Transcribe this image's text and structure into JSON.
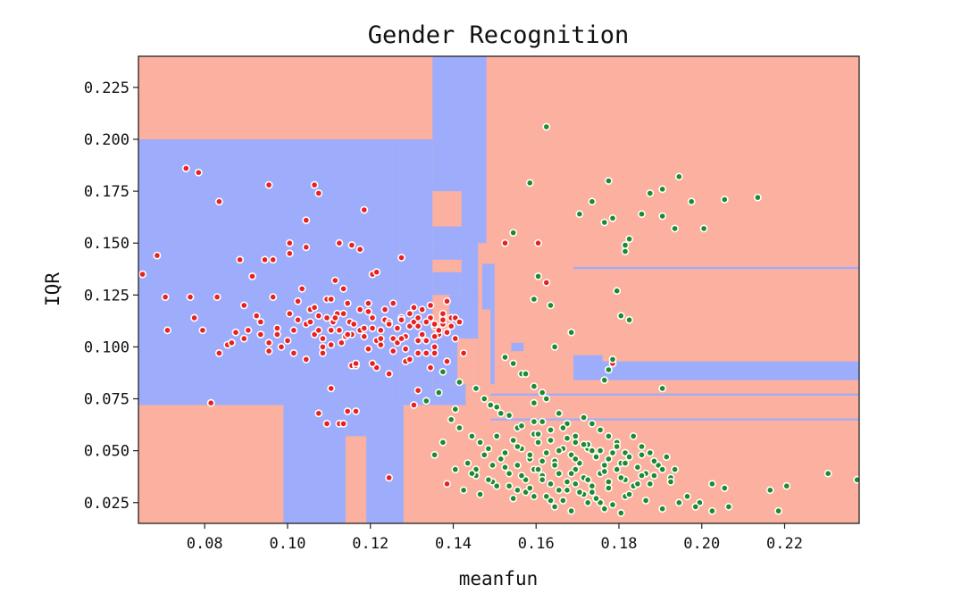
{
  "chart_data": {
    "type": "scatter",
    "title": "Gender Recognition",
    "xlabel": "meanfun",
    "ylabel": "IQR",
    "xlim": [
      0.064,
      0.238
    ],
    "ylim": [
      0.015,
      0.24
    ],
    "xticks": [
      0.08,
      0.1,
      0.12,
      0.14,
      0.16,
      0.18,
      0.2,
      0.22
    ],
    "xtick_labels": [
      "0.08",
      "0.10",
      "0.12",
      "0.14",
      "0.16",
      "0.18",
      "0.20",
      "0.22"
    ],
    "yticks": [
      0.025,
      0.05,
      0.075,
      0.1,
      0.125,
      0.15,
      0.175,
      0.2,
      0.225
    ],
    "ytick_labels": [
      "0.025",
      "0.050",
      "0.075",
      "0.100",
      "0.125",
      "0.150",
      "0.175",
      "0.200",
      "0.225"
    ],
    "grid": false,
    "colors": {
      "region_a": "#fbb0a0",
      "region_b": "#9eadfb",
      "class_red": "#e8211f",
      "class_green": "#1d8a2b",
      "marker_edge": "#ffffff"
    },
    "decision_regions": [
      {
        "class": "b",
        "x": [
          0.064,
          0.127
        ],
        "y": [
          0.072,
          0.2
        ]
      },
      {
        "class": "b",
        "x": [
          0.127,
          0.135
        ],
        "y": [
          0.072,
          0.2
        ]
      },
      {
        "class": "b",
        "x": [
          0.135,
          0.148
        ],
        "y": [
          0.15,
          0.24
        ]
      },
      {
        "class": "b",
        "x": [
          0.135,
          0.142
        ],
        "y": [
          0.125,
          0.15
        ]
      },
      {
        "class": "a",
        "x": [
          0.135,
          0.142
        ],
        "y": [
          0.158,
          0.175
        ]
      },
      {
        "class": "a",
        "x": [
          0.135,
          0.142
        ],
        "y": [
          0.136,
          0.142
        ]
      },
      {
        "class": "b",
        "x": [
          0.142,
          0.146
        ],
        "y": [
          0.12,
          0.152
        ]
      },
      {
        "class": "b",
        "x": [
          0.135,
          0.146
        ],
        "y": [
          0.082,
          0.125
        ]
      },
      {
        "class": "a",
        "x": [
          0.135,
          0.139
        ],
        "y": [
          0.107,
          0.125
        ]
      },
      {
        "class": "a",
        "x": [
          0.141,
          0.146
        ],
        "y": [
          0.082,
          0.104
        ]
      },
      {
        "class": "b",
        "x": [
          0.147,
          0.149
        ],
        "y": [
          0.118,
          0.14
        ]
      },
      {
        "class": "b",
        "x": [
          0.149,
          0.15
        ],
        "y": [
          0.082,
          0.14
        ]
      },
      {
        "class": "b",
        "x": [
          0.135,
          0.143
        ],
        "y": [
          0.072,
          0.082
        ]
      },
      {
        "class": "b",
        "x": [
          0.099,
          0.114
        ],
        "y": [
          0.015,
          0.072
        ]
      },
      {
        "class": "b",
        "x": [
          0.119,
          0.128
        ],
        "y": [
          0.015,
          0.072
        ]
      },
      {
        "class": "b",
        "x": [
          0.114,
          0.119
        ],
        "y": [
          0.057,
          0.072
        ]
      },
      {
        "class": "b",
        "x": [
          0.149,
          0.238
        ],
        "y": [
          0.0765,
          0.0775
        ]
      },
      {
        "class": "b",
        "x": [
          0.149,
          0.238
        ],
        "y": [
          0.0645,
          0.0655
        ]
      },
      {
        "class": "b",
        "x": [
          0.169,
          0.238
        ],
        "y": [
          0.084,
          0.093
        ]
      },
      {
        "class": "b",
        "x": [
          0.169,
          0.176
        ],
        "y": [
          0.09,
          0.096
        ]
      },
      {
        "class": "b",
        "x": [
          0.169,
          0.238
        ],
        "y": [
          0.1375,
          0.1385
        ]
      },
      {
        "class": "b",
        "x": [
          0.154,
          0.157
        ],
        "y": [
          0.098,
          0.102
        ]
      }
    ],
    "series": [
      {
        "class": "red",
        "x": [
          0.065,
          0.0685,
          0.0705,
          0.071,
          0.0755,
          0.0765,
          0.0775,
          0.0795,
          0.0815,
          0.083,
          0.0835,
          0.0855,
          0.0865,
          0.0875,
          0.0885,
          0.0895,
          0.0905,
          0.0915,
          0.0925,
          0.0935,
          0.0945,
          0.0955,
          0.0965,
          0.0975,
          0.0985,
          0.1,
          0.1015,
          0.1025,
          0.1035,
          0.1045,
          0.1055,
          0.1065,
          0.1075,
          0.1085,
          0.1095,
          0.111,
          0.112,
          0.113,
          0.114,
          0.115,
          0.116,
          0.1175,
          0.1185,
          0.1195,
          0.1205,
          0.1215,
          0.1225,
          0.1235,
          0.1245,
          0.1255,
          0.1265,
          0.1275,
          0.1285,
          0.1295,
          0.1305,
          0.1315,
          0.1325,
          0.1335,
          0.1345,
          0.1355,
          0.1365,
          0.1375,
          0.1385,
          0.0955,
          0.1065,
          0.1075,
          0.1045,
          0.0965,
          0.1185,
          0.0955,
          0.1005,
          0.1045,
          0.1005,
          0.1125,
          0.1155,
          0.1175,
          0.1205,
          0.1215,
          0.1275,
          0.0835,
          0.0895,
          0.1025,
          0.1105,
          0.1115,
          0.1135,
          0.0785,
          0.1145,
          0.1075,
          0.1095,
          0.1125,
          0.1135,
          0.1165,
          0.1255,
          0.1285,
          0.1315,
          0.1345,
          0.1045,
          0.1085,
          0.1155,
          0.1215,
          0.1245,
          0.1165,
          0.1105,
          0.1245,
          0.1305,
          0.1315,
          0.1385,
          0.1525,
          0.1605,
          0.1625,
          0.1785,
          0.0935,
          0.1005,
          0.1055,
          0.1145,
          0.1065,
          0.1085,
          0.1105,
          0.1195,
          0.1225,
          0.1265,
          0.1285,
          0.1335,
          0.1355,
          0.1385,
          0.1405,
          0.1425,
          0.1075,
          0.1115,
          0.1175,
          0.1235,
          0.1295,
          0.1325,
          0.1375,
          0.1395,
          0.1405,
          0.0975,
          0.1015,
          0.1125,
          0.1155,
          0.1225,
          0.1275,
          0.1315,
          0.1355,
          0.1195,
          0.1255,
          0.1305,
          0.1345,
          0.1385,
          0.1165,
          0.1205,
          0.1295,
          0.1355,
          0.1105,
          0.1145,
          0.1185,
          0.1245,
          0.1315,
          0.1365,
          0.1375,
          0.1395,
          0.1415,
          0.1095,
          0.1135,
          0.1205,
          0.1275,
          0.1335,
          0.1355,
          0.1375
        ],
        "y": [
          0.135,
          0.144,
          0.124,
          0.108,
          0.186,
          0.124,
          0.114,
          0.108,
          0.073,
          0.124,
          0.097,
          0.101,
          0.102,
          0.107,
          0.142,
          0.104,
          0.108,
          0.134,
          0.115,
          0.106,
          0.142,
          0.102,
          0.124,
          0.109,
          0.1,
          0.103,
          0.097,
          0.113,
          0.128,
          0.111,
          0.112,
          0.106,
          0.108,
          0.104,
          0.123,
          0.112,
          0.116,
          0.102,
          0.105,
          0.112,
          0.111,
          0.108,
          0.105,
          0.117,
          0.109,
          0.103,
          0.108,
          0.113,
          0.112,
          0.104,
          0.109,
          0.114,
          0.105,
          0.11,
          0.112,
          0.114,
          0.106,
          0.103,
          0.114,
          0.11,
          0.106,
          0.111,
          0.107,
          0.178,
          0.178,
          0.174,
          0.161,
          0.142,
          0.166,
          0.098,
          0.145,
          0.148,
          0.15,
          0.15,
          0.149,
          0.147,
          0.135,
          0.136,
          0.143,
          0.17,
          0.12,
          0.122,
          0.123,
          0.132,
          0.128,
          0.184,
          0.069,
          0.068,
          0.063,
          0.063,
          0.063,
          0.069,
          0.098,
          0.093,
          0.097,
          0.09,
          0.094,
          0.097,
          0.091,
          0.09,
          0.087,
          0.091,
          0.08,
          0.037,
          0.072,
          0.079,
          0.034,
          0.15,
          0.15,
          0.131,
          0.092,
          0.112,
          0.116,
          0.118,
          0.121,
          0.119,
          0.1,
          0.101,
          0.099,
          0.101,
          0.102,
          0.099,
          0.097,
          0.1,
          0.093,
          0.104,
          0.097,
          0.115,
          0.114,
          0.118,
          0.118,
          0.116,
          0.118,
          0.115,
          0.114,
          0.114,
          0.106,
          0.108,
          0.108,
          0.106,
          0.104,
          0.104,
          0.103,
          0.105,
          0.121,
          0.121,
          0.119,
          0.12,
          0.122,
          0.092,
          0.092,
          0.094,
          0.097,
          0.108,
          0.106,
          0.109,
          0.111,
          0.11,
          0.108,
          0.113,
          0.11,
          0.112,
          0.114,
          0.116,
          0.114,
          0.113,
          0.112,
          0.111,
          0.116
        ]
      },
      {
        "class": "green",
        "x": [
          0.149,
          0.1545,
          0.1585,
          0.1625,
          0.1645,
          0.1705,
          0.1735,
          0.1765,
          0.1775,
          0.1785,
          0.1815,
          0.1825,
          0.1855,
          0.1875,
          0.1905,
          0.1905,
          0.1935,
          0.1945,
          0.1975,
          0.2005,
          0.2055,
          0.2135,
          0.1795,
          0.1805,
          0.1825,
          0.1595,
          0.1605,
          0.1635,
          0.1685,
          0.1775,
          0.1765,
          0.1785,
          0.1815,
          0.1525,
          0.1545,
          0.1565,
          0.1575,
          0.1595,
          0.1615,
          0.1625,
          0.1595,
          0.1905,
          0.1515,
          0.1555,
          0.1595,
          0.1615,
          0.1635,
          0.1655,
          0.1675,
          0.1695,
          0.1715,
          0.1735,
          0.1755,
          0.1775,
          0.1795,
          0.1815,
          0.1835,
          0.1855,
          0.1875,
          0.1895,
          0.1915,
          0.1935,
          0.1965,
          0.1995,
          0.2025,
          0.2055,
          0.2065,
          0.2165,
          0.2185,
          0.2205,
          0.2305,
          0.2375,
          0.1395,
          0.1445,
          0.1465,
          0.1485,
          0.1505,
          0.1525,
          0.1545,
          0.1565,
          0.1585,
          0.1605,
          0.1625,
          0.1645,
          0.1665,
          0.1685,
          0.1705,
          0.1725,
          0.1745,
          0.1765,
          0.1785,
          0.1805,
          0.1825,
          0.1845,
          0.1865,
          0.1885,
          0.1905,
          0.1925,
          0.1355,
          0.1375,
          0.1415,
          0.1435,
          0.1455,
          0.1475,
          0.1495,
          0.1515,
          0.1535,
          0.1555,
          0.1575,
          0.1595,
          0.1615,
          0.1635,
          0.1655,
          0.1675,
          0.1695,
          0.1715,
          0.1735,
          0.1755,
          0.1775,
          0.1795,
          0.1815,
          0.1835,
          0.1855,
          0.1875,
          0.1555,
          0.1595,
          0.1635,
          0.1675,
          0.1715,
          0.1755,
          0.1455,
          0.1495,
          0.1535,
          0.1575,
          0.1615,
          0.1655,
          0.1695,
          0.1735,
          0.1775,
          0.1815,
          0.1645,
          0.1685,
          0.1725,
          0.1765,
          0.1805,
          0.1405,
          0.1445,
          0.1485,
          0.1525,
          0.1565,
          0.1605,
          0.1645,
          0.1685,
          0.1725,
          0.1765,
          0.1805,
          0.1845,
          0.1885,
          0.1925,
          0.1555,
          0.1585,
          0.1615,
          0.1655,
          0.1695,
          0.1735,
          0.1775,
          0.1815,
          0.1855,
          0.1425,
          0.1465,
          0.1505,
          0.1545,
          0.1585,
          0.1625,
          0.1665,
          0.1705,
          0.1745,
          0.1785,
          0.1825,
          0.1865,
          0.1905,
          0.1945,
          0.1985,
          0.2025,
          0.1335,
          0.1365,
          0.1405,
          0.1375,
          0.1415,
          0.1455,
          0.1475,
          0.1505,
          0.1535,
          0.1565,
          0.1605,
          0.1635,
          0.1665,
          0.1695,
          0.1725,
          0.1595,
          0.1635,
          0.1675,
          0.1715,
          0.1755,
          0.1795
        ],
        "y": [
          0.072,
          0.155,
          0.179,
          0.206,
          0.1,
          0.164,
          0.17,
          0.16,
          0.18,
          0.162,
          0.146,
          0.152,
          0.164,
          0.174,
          0.176,
          0.163,
          0.157,
          0.182,
          0.17,
          0.157,
          0.171,
          0.172,
          0.127,
          0.115,
          0.113,
          0.123,
          0.134,
          0.12,
          0.107,
          0.089,
          0.084,
          0.094,
          0.149,
          0.095,
          0.092,
          0.087,
          0.087,
          0.081,
          0.078,
          0.075,
          0.073,
          0.08,
          0.068,
          0.061,
          0.058,
          0.064,
          0.06,
          0.068,
          0.063,
          0.054,
          0.066,
          0.063,
          0.06,
          0.057,
          0.054,
          0.049,
          0.057,
          0.052,
          0.049,
          0.043,
          0.047,
          0.041,
          0.028,
          0.025,
          0.034,
          0.032,
          0.023,
          0.031,
          0.021,
          0.033,
          0.039,
          0.036,
          0.065,
          0.057,
          0.054,
          0.051,
          0.057,
          0.049,
          0.055,
          0.051,
          0.046,
          0.054,
          0.049,
          0.045,
          0.051,
          0.048,
          0.044,
          0.051,
          0.047,
          0.043,
          0.049,
          0.044,
          0.047,
          0.042,
          0.039,
          0.045,
          0.041,
          0.037,
          0.048,
          0.054,
          0.061,
          0.044,
          0.041,
          0.048,
          0.043,
          0.046,
          0.039,
          0.043,
          0.036,
          0.041,
          0.038,
          0.034,
          0.039,
          0.035,
          0.041,
          0.037,
          0.033,
          0.039,
          0.035,
          0.041,
          0.036,
          0.033,
          0.038,
          0.034,
          0.031,
          0.028,
          0.026,
          0.031,
          0.029,
          0.025,
          0.038,
          0.035,
          0.033,
          0.03,
          0.036,
          0.031,
          0.034,
          0.03,
          0.032,
          0.028,
          0.023,
          0.021,
          0.025,
          0.022,
          0.02,
          0.041,
          0.039,
          0.036,
          0.042,
          0.038,
          0.041,
          0.043,
          0.039,
          0.036,
          0.04,
          0.037,
          0.034,
          0.038,
          0.035,
          0.052,
          0.048,
          0.045,
          0.05,
          0.046,
          0.05,
          0.046,
          0.044,
          0.048,
          0.031,
          0.029,
          0.033,
          0.027,
          0.032,
          0.028,
          0.026,
          0.03,
          0.027,
          0.024,
          0.029,
          0.026,
          0.022,
          0.025,
          0.023,
          0.021,
          0.074,
          0.078,
          0.07,
          0.088,
          0.083,
          0.08,
          0.075,
          0.071,
          0.067,
          0.062,
          0.058,
          0.055,
          0.061,
          0.057,
          0.053,
          0.064,
          0.06,
          0.056,
          0.053,
          0.05,
          0.052
        ]
      }
    ]
  }
}
